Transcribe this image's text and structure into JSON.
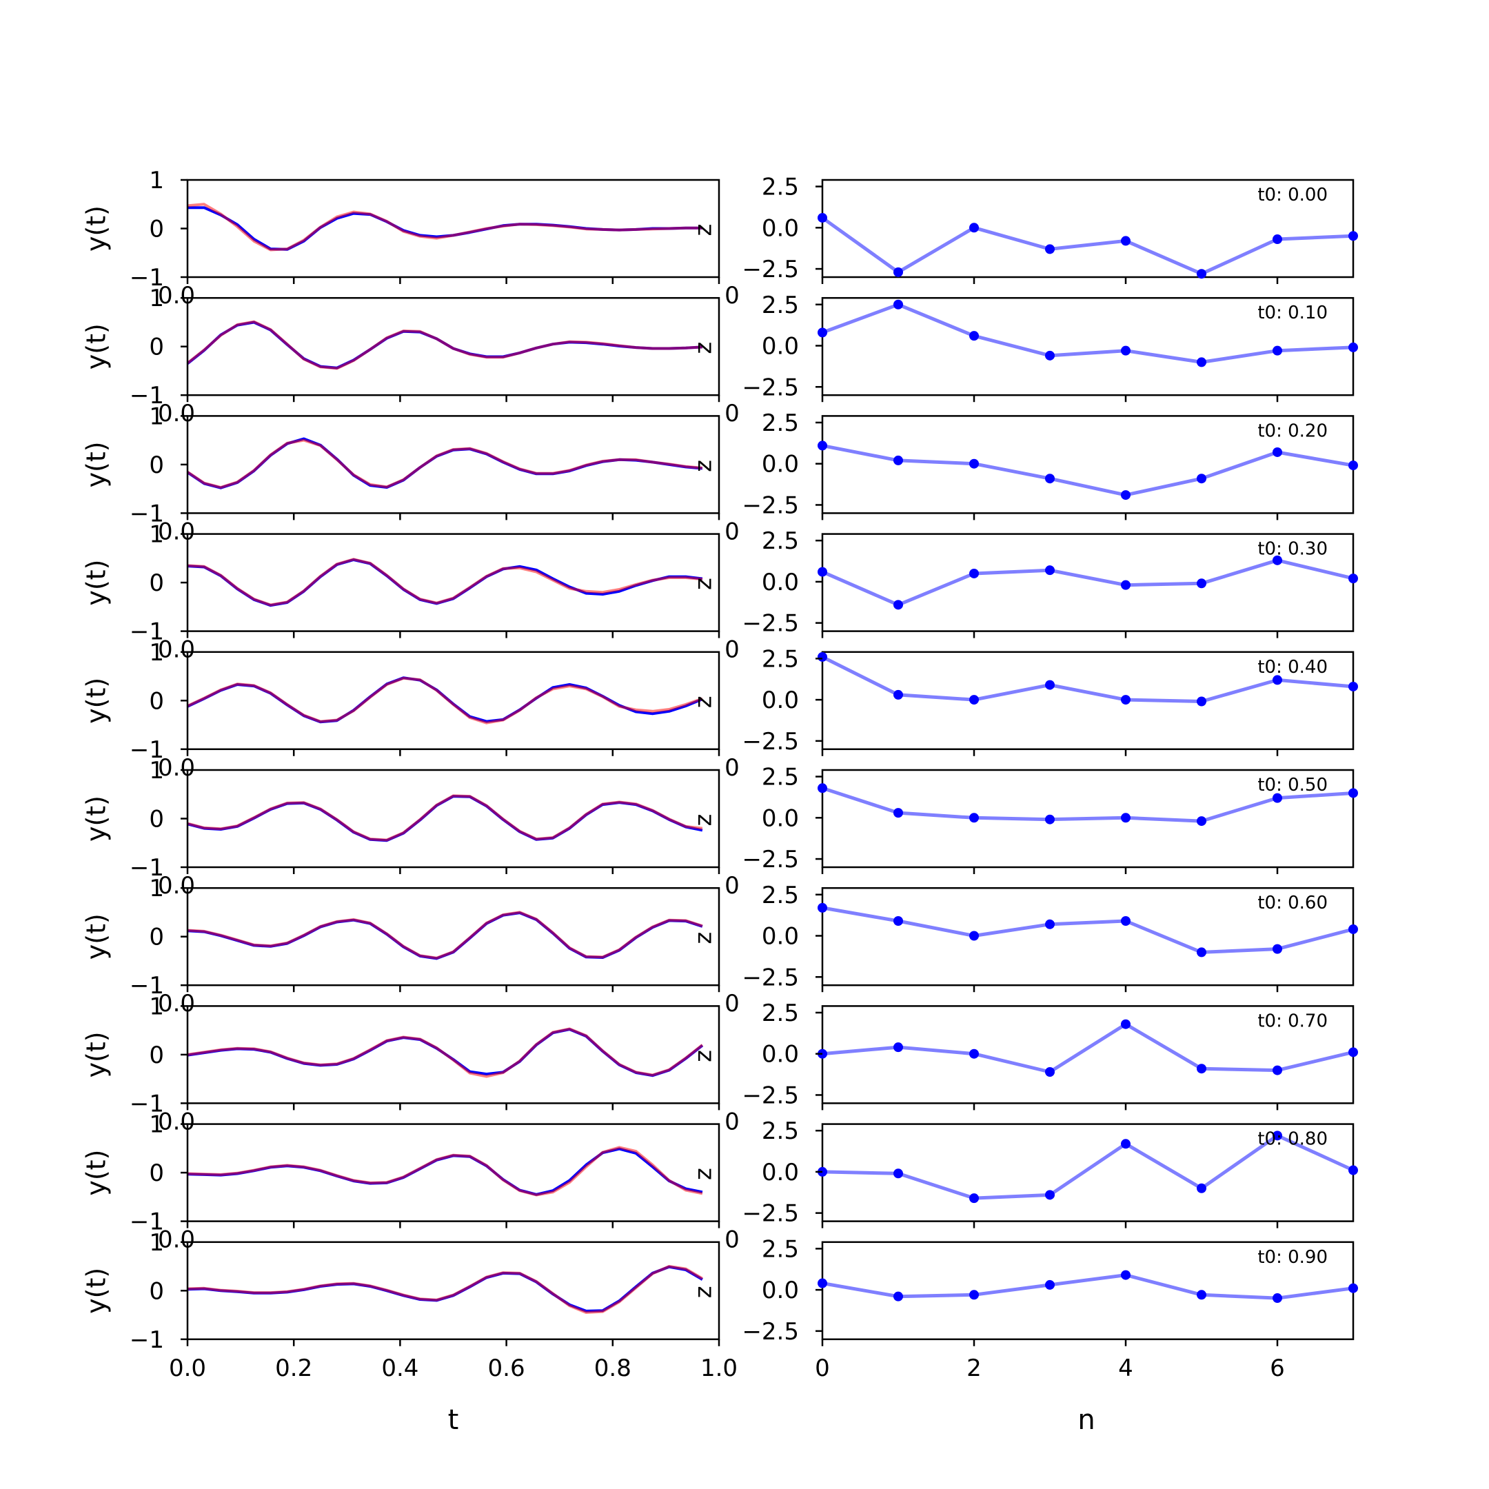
{
  "figure": {
    "left_xlabel": "t",
    "right_xlabel": "n",
    "left_ylabel": "y(t)",
    "right_ylabel": "z",
    "colors": {
      "true_series": "#0000ff",
      "pred_series": "#ff0000",
      "latent": "#0000ff",
      "axes": "#000000"
    }
  },
  "chart_data": [
    {
      "type": "line",
      "panel": "left",
      "xlim": [
        0,
        1
      ],
      "ylim": [
        -1,
        1
      ],
      "xticks": [
        "0.0",
        "0.2",
        "0.4",
        "0.6",
        "0.8",
        "1.0"
      ],
      "yticks": [
        "−1",
        "0",
        "1"
      ],
      "xlabel": "t",
      "ylabel": "y(t)",
      "x": [
        0,
        0.03125,
        0.0625,
        0.09375,
        0.125,
        0.15625,
        0.1875,
        0.21875,
        0.25,
        0.28125,
        0.3125,
        0.34375,
        0.375,
        0.40625,
        0.4375,
        0.46875,
        0.5,
        0.53125,
        0.5625,
        0.59375,
        0.625,
        0.65625,
        0.6875,
        0.71875,
        0.75,
        0.78125,
        0.8125,
        0.84375,
        0.875,
        0.90625,
        0.9375,
        0.96875
      ],
      "rows": [
        [
          [
            0.43,
            0.43,
            0.28,
            0.08,
            -0.22,
            -0.42,
            -0.43,
            -0.26,
            0.02,
            0.21,
            0.31,
            0.29,
            0.14,
            -0.04,
            -0.14,
            -0.17,
            -0.14,
            -0.08,
            -0.01,
            0.06,
            0.09,
            0.09,
            0.07,
            0.04,
            0.0,
            -0.02,
            -0.03,
            -0.02,
            0.0,
            0.0,
            0.01,
            0.01
          ],
          [
            0.47,
            0.5,
            0.3,
            0.04,
            -0.26,
            -0.44,
            -0.42,
            -0.24,
            0.03,
            0.24,
            0.34,
            0.3,
            0.15,
            -0.06,
            -0.16,
            -0.2,
            -0.14,
            -0.07,
            0.0,
            0.05,
            0.09,
            0.08,
            0.06,
            0.03,
            -0.01,
            -0.02,
            -0.03,
            -0.02,
            -0.01,
            0.0,
            0.01,
            0.01
          ]
        ],
        [
          [
            -0.35,
            -0.08,
            0.24,
            0.44,
            0.5,
            0.34,
            0.04,
            -0.25,
            -0.41,
            -0.44,
            -0.28,
            -0.06,
            0.17,
            0.31,
            0.3,
            0.16,
            -0.04,
            -0.15,
            -0.21,
            -0.21,
            -0.13,
            -0.03,
            0.05,
            0.09,
            0.08,
            0.05,
            0.01,
            -0.02,
            -0.04,
            -0.04,
            -0.03,
            -0.01
          ],
          [
            -0.34,
            -0.07,
            0.23,
            0.45,
            0.51,
            0.35,
            0.05,
            -0.26,
            -0.42,
            -0.45,
            -0.29,
            -0.06,
            0.18,
            0.32,
            0.31,
            0.16,
            -0.04,
            -0.16,
            -0.22,
            -0.22,
            -0.13,
            -0.03,
            0.05,
            0.1,
            0.09,
            0.06,
            0.02,
            -0.02,
            -0.04,
            -0.04,
            -0.03,
            -0.01
          ]
        ],
        [
          [
            -0.16,
            -0.39,
            -0.48,
            -0.37,
            -0.13,
            0.19,
            0.43,
            0.53,
            0.4,
            0.11,
            -0.22,
            -0.43,
            -0.47,
            -0.32,
            -0.06,
            0.17,
            0.3,
            0.32,
            0.22,
            0.05,
            -0.1,
            -0.19,
            -0.19,
            -0.13,
            -0.02,
            0.06,
            0.1,
            0.09,
            0.05,
            0.0,
            -0.05,
            -0.08
          ],
          [
            -0.15,
            -0.38,
            -0.47,
            -0.36,
            -0.12,
            0.2,
            0.44,
            0.5,
            0.39,
            0.1,
            -0.21,
            -0.41,
            -0.46,
            -0.31,
            -0.06,
            0.18,
            0.31,
            0.33,
            0.23,
            0.06,
            -0.09,
            -0.18,
            -0.18,
            -0.12,
            -0.01,
            0.07,
            0.1,
            0.1,
            0.05,
            0.01,
            -0.04,
            -0.07
          ]
        ],
        [
          [
            0.34,
            0.32,
            0.14,
            -0.13,
            -0.35,
            -0.47,
            -0.41,
            -0.18,
            0.12,
            0.37,
            0.47,
            0.39,
            0.14,
            -0.14,
            -0.35,
            -0.43,
            -0.33,
            -0.11,
            0.12,
            0.28,
            0.33,
            0.26,
            0.08,
            -0.09,
            -0.22,
            -0.24,
            -0.18,
            -0.06,
            0.04,
            0.12,
            0.12,
            0.08
          ],
          [
            0.35,
            0.33,
            0.15,
            -0.12,
            -0.34,
            -0.46,
            -0.4,
            -0.17,
            0.13,
            0.38,
            0.48,
            0.4,
            0.15,
            -0.13,
            -0.34,
            -0.42,
            -0.32,
            -0.1,
            0.13,
            0.29,
            0.3,
            0.22,
            0.05,
            -0.12,
            -0.18,
            -0.2,
            -0.14,
            -0.04,
            0.05,
            0.1,
            0.1,
            0.07
          ]
        ],
        [
          [
            -0.12,
            0.04,
            0.21,
            0.33,
            0.3,
            0.15,
            -0.09,
            -0.31,
            -0.44,
            -0.41,
            -0.2,
            0.08,
            0.34,
            0.47,
            0.42,
            0.22,
            -0.07,
            -0.33,
            -0.43,
            -0.39,
            -0.19,
            0.05,
            0.27,
            0.33,
            0.26,
            0.09,
            -0.1,
            -0.23,
            -0.27,
            -0.22,
            -0.11,
            0.03
          ],
          [
            -0.11,
            0.05,
            0.22,
            0.34,
            0.31,
            0.16,
            -0.08,
            -0.3,
            -0.43,
            -0.4,
            -0.21,
            0.07,
            0.33,
            0.46,
            0.43,
            0.21,
            -0.08,
            -0.35,
            -0.46,
            -0.4,
            -0.2,
            0.06,
            0.24,
            0.3,
            0.24,
            0.08,
            -0.12,
            -0.19,
            -0.22,
            -0.18,
            -0.08,
            0.04
          ]
        ],
        [
          [
            -0.11,
            -0.2,
            -0.22,
            -0.16,
            0.01,
            0.19,
            0.31,
            0.32,
            0.19,
            -0.03,
            -0.28,
            -0.43,
            -0.45,
            -0.3,
            -0.03,
            0.27,
            0.46,
            0.45,
            0.26,
            -0.02,
            -0.27,
            -0.43,
            -0.4,
            -0.2,
            0.08,
            0.29,
            0.33,
            0.29,
            0.16,
            -0.02,
            -0.17,
            -0.24
          ],
          [
            -0.1,
            -0.19,
            -0.21,
            -0.15,
            0.02,
            0.2,
            0.32,
            0.33,
            0.2,
            -0.02,
            -0.27,
            -0.42,
            -0.44,
            -0.29,
            -0.02,
            0.28,
            0.47,
            0.46,
            0.27,
            -0.01,
            -0.26,
            -0.42,
            -0.39,
            -0.19,
            0.09,
            0.3,
            0.34,
            0.3,
            0.17,
            -0.01,
            -0.16,
            -0.2
          ]
        ],
        [
          [
            0.12,
            0.1,
            0.02,
            -0.08,
            -0.18,
            -0.2,
            -0.14,
            0.02,
            0.2,
            0.3,
            0.34,
            0.27,
            0.05,
            -0.21,
            -0.4,
            -0.45,
            -0.32,
            -0.03,
            0.27,
            0.44,
            0.49,
            0.35,
            0.07,
            -0.24,
            -0.42,
            -0.43,
            -0.28,
            -0.02,
            0.19,
            0.33,
            0.32,
            0.21
          ],
          [
            0.13,
            0.11,
            0.03,
            -0.07,
            -0.17,
            -0.19,
            -0.13,
            0.03,
            0.21,
            0.31,
            0.35,
            0.28,
            0.06,
            -0.2,
            -0.39,
            -0.44,
            -0.31,
            -0.02,
            0.28,
            0.45,
            0.5,
            0.36,
            0.08,
            -0.23,
            -0.41,
            -0.42,
            -0.27,
            -0.01,
            0.2,
            0.34,
            0.33,
            0.22
          ]
        ],
        [
          [
            -0.01,
            0.04,
            0.09,
            0.12,
            0.11,
            0.05,
            -0.08,
            -0.18,
            -0.22,
            -0.2,
            -0.09,
            0.09,
            0.28,
            0.35,
            0.31,
            0.13,
            -0.1,
            -0.35,
            -0.4,
            -0.36,
            -0.14,
            0.2,
            0.45,
            0.52,
            0.38,
            0.07,
            -0.21,
            -0.37,
            -0.43,
            -0.32,
            -0.08,
            0.19
          ],
          [
            0.0,
            0.05,
            0.1,
            0.13,
            0.12,
            0.06,
            -0.07,
            -0.17,
            -0.21,
            -0.19,
            -0.08,
            0.1,
            0.29,
            0.36,
            0.32,
            0.14,
            -0.11,
            -0.38,
            -0.45,
            -0.37,
            -0.13,
            0.21,
            0.46,
            0.53,
            0.39,
            0.08,
            -0.2,
            -0.36,
            -0.42,
            -0.31,
            -0.07,
            0.2
          ]
        ],
        [
          [
            -0.03,
            -0.04,
            -0.05,
            -0.02,
            0.04,
            0.11,
            0.14,
            0.11,
            0.04,
            -0.07,
            -0.17,
            -0.22,
            -0.21,
            -0.1,
            0.08,
            0.26,
            0.35,
            0.33,
            0.14,
            -0.14,
            -0.36,
            -0.45,
            -0.37,
            -0.16,
            0.16,
            0.41,
            0.49,
            0.4,
            0.12,
            -0.17,
            -0.33,
            -0.4
          ],
          [
            -0.02,
            -0.03,
            -0.04,
            -0.01,
            0.05,
            0.12,
            0.15,
            0.12,
            0.05,
            -0.06,
            -0.16,
            -0.21,
            -0.2,
            -0.09,
            0.09,
            0.27,
            0.36,
            0.34,
            0.15,
            -0.15,
            -0.37,
            -0.46,
            -0.4,
            -0.2,
            0.12,
            0.42,
            0.52,
            0.44,
            0.16,
            -0.16,
            -0.36,
            -0.43
          ]
        ],
        [
          [
            0.03,
            0.04,
            0.0,
            -0.02,
            -0.05,
            -0.05,
            -0.03,
            0.02,
            0.09,
            0.13,
            0.14,
            0.09,
            0.0,
            -0.1,
            -0.18,
            -0.2,
            -0.1,
            0.08,
            0.27,
            0.36,
            0.35,
            0.18,
            -0.07,
            -0.29,
            -0.42,
            -0.41,
            -0.21,
            0.08,
            0.36,
            0.49,
            0.43,
            0.23
          ],
          [
            0.04,
            0.05,
            0.01,
            -0.01,
            -0.04,
            -0.04,
            -0.02,
            0.03,
            0.1,
            0.14,
            0.15,
            0.1,
            0.01,
            -0.09,
            -0.17,
            -0.19,
            -0.09,
            0.09,
            0.28,
            0.37,
            0.36,
            0.19,
            -0.06,
            -0.31,
            -0.45,
            -0.43,
            -0.23,
            0.06,
            0.35,
            0.5,
            0.45,
            0.25
          ]
        ]
      ]
    },
    {
      "type": "line",
      "panel": "right",
      "xlim": [
        0,
        7
      ],
      "ylim": [
        -3,
        2.9
      ],
      "xticks": [
        "0",
        "2",
        "4",
        "6"
      ],
      "yticks": [
        "−2.5",
        "0.0",
        "2.5"
      ],
      "xlabel": "n",
      "ylabel": "z",
      "x": [
        0,
        1,
        2,
        3,
        4,
        5,
        6,
        7
      ],
      "panels": [
        {
          "label": "t0: 0.00",
          "values": [
            0.6,
            -2.7,
            0.0,
            -1.3,
            -0.8,
            -2.8,
            -0.7,
            -0.5
          ]
        },
        {
          "label": "t0: 0.10",
          "values": [
            0.8,
            2.5,
            0.6,
            -0.6,
            -0.3,
            -1.0,
            -0.3,
            -0.1
          ]
        },
        {
          "label": "t0: 0.20",
          "values": [
            1.1,
            0.2,
            0.0,
            -0.9,
            -1.9,
            -0.9,
            0.7,
            -0.1
          ]
        },
        {
          "label": "t0: 0.30",
          "values": [
            0.6,
            -1.4,
            0.5,
            0.7,
            -0.2,
            -0.1,
            1.3,
            0.2
          ]
        },
        {
          "label": "t0: 0.40",
          "values": [
            2.6,
            0.3,
            0.0,
            0.9,
            0.0,
            -0.1,
            1.2,
            0.8
          ]
        },
        {
          "label": "t0: 0.50",
          "values": [
            1.8,
            0.3,
            0.0,
            -0.1,
            0.0,
            -0.2,
            1.2,
            1.5
          ]
        },
        {
          "label": "t0: 0.60",
          "values": [
            1.7,
            0.9,
            0.0,
            0.7,
            0.9,
            -1.0,
            -0.8,
            0.4
          ]
        },
        {
          "label": "t0: 0.70",
          "values": [
            0.0,
            0.4,
            0.0,
            -1.1,
            1.8,
            -0.9,
            -1.0,
            0.1
          ]
        },
        {
          "label": "t0: 0.80",
          "values": [
            0.0,
            -0.1,
            -1.6,
            -1.4,
            1.7,
            -1.0,
            2.2,
            0.1
          ]
        },
        {
          "label": "t0: 0.90",
          "values": [
            0.4,
            -0.4,
            -0.3,
            0.3,
            0.9,
            -0.3,
            -0.5,
            0.1
          ]
        }
      ]
    }
  ]
}
